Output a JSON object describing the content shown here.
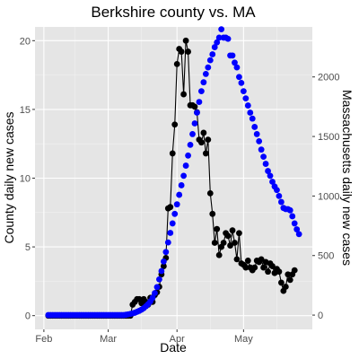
{
  "chart_data": {
    "type": "line",
    "title": "Berkshire county vs. MA",
    "xlabel": "Date",
    "ylabel": "County daily new cases",
    "y2label": "Massachusetts daily new cases",
    "y2label_color": "#0000ff",
    "panel_color": "#e5e5e5",
    "xlim": [
      "2020-01-28",
      "2020-06-01"
    ],
    "ylim": [
      -1,
      21
    ],
    "y2lim": [
      -120,
      2420
    ],
    "x_ticks": [
      {
        "date": "2020-02-01",
        "label": "Feb"
      },
      {
        "date": "2020-03-01",
        "label": "Mar"
      },
      {
        "date": "2020-04-01",
        "label": "Apr"
      },
      {
        "date": "2020-05-01",
        "label": "May"
      }
    ],
    "x_minor_ticks": [
      "2020-02-15",
      "2020-03-16",
      "2020-04-16",
      "2020-05-16"
    ],
    "y_ticks": [
      0,
      5,
      10,
      15,
      20
    ],
    "y2_ticks": [
      0,
      500,
      1000,
      1500,
      2000
    ],
    "series": [
      {
        "axis": "left",
        "color": "#000000",
        "line": true,
        "start_date": "2020-02-03",
        "values": [
          0,
          0,
          0,
          0,
          0,
          0,
          0,
          0,
          0,
          0,
          0,
          0,
          0,
          0,
          0,
          0,
          0,
          0,
          0,
          0,
          0,
          0,
          0,
          0,
          0,
          0,
          0,
          0,
          0,
          0,
          0,
          0,
          0,
          0,
          0,
          0,
          0,
          0,
          0.8,
          1.0,
          1.2,
          1.2,
          0.9,
          1.2,
          1.0,
          0.8,
          1.3,
          1.0,
          1.5,
          1.7,
          2.1,
          3.0,
          3.6,
          4.2,
          7.8,
          7.9,
          11.8,
          13.9,
          18.3,
          19.4,
          19.2,
          16.1,
          20.0,
          19.2,
          15.3,
          15.3,
          15.2,
          14.8,
          12.8,
          12.6,
          13.3,
          11.8,
          12.8,
          8.9,
          7.4,
          5.3,
          6.3,
          4.4,
          5.0,
          5.3,
          6.0,
          5.8,
          5.1,
          6.2,
          5.3,
          4.1,
          6.0,
          3.8,
          3.7,
          3.5,
          4.0,
          3.5,
          3.3,
          3.5,
          4.0,
          3.9,
          4.1,
          3.5,
          3.9,
          3.2,
          3.8,
          3.6,
          3.1,
          3.4,
          3.2,
          2.4,
          1.8,
          2.1,
          3.0,
          2.6,
          3.0,
          3.3
        ]
      },
      {
        "axis": "right",
        "color": "#0000ff",
        "line": false,
        "start_date": "2020-02-03",
        "values": [
          0,
          0,
          0,
          0,
          0,
          0,
          0,
          0,
          0,
          0,
          0,
          0,
          0,
          0,
          0,
          0,
          0,
          0,
          0,
          0,
          0,
          0,
          0,
          0,
          0,
          0,
          0,
          0,
          0,
          0,
          0,
          0,
          0,
          0,
          0,
          3,
          6,
          10,
          15,
          20,
          28,
          36,
          46,
          58,
          74,
          92,
          115,
          145,
          185,
          235,
          300,
          370,
          450,
          530,
          610,
          690,
          770,
          850,
          930,
          1010,
          1090,
          1170,
          1255,
          1340,
          1430,
          1520,
          1610,
          1700,
          1790,
          1880,
          1955,
          2025,
          2080,
          2140,
          2190,
          2250,
          2290,
          2330,
          2400,
          2330,
          2330,
          2320,
          2180,
          2180,
          2120,
          2080,
          2000,
          1950,
          1880,
          1820,
          1760,
          1700,
          1650,
          1580,
          1520,
          1460,
          1390,
          1330,
          1270,
          1210,
          1170,
          1120,
          1080,
          1050,
          1000,
          950,
          900,
          890,
          890,
          880,
          830,
          770,
          720,
          680
        ]
      }
    ]
  }
}
